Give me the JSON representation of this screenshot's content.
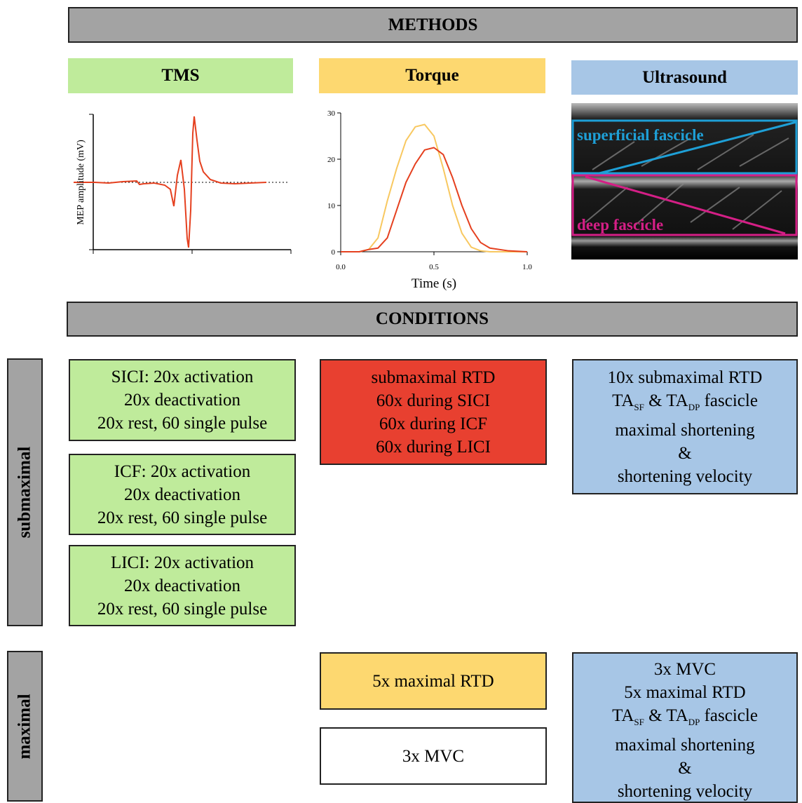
{
  "methods": {
    "title": "METHODS",
    "tms": {
      "title": "TMS",
      "ylabel": "MEP amplitude (mV)"
    },
    "torque": {
      "title": "Torque"
    },
    "ultrasound": {
      "title": "Ultrasound",
      "superficial_label": "superficial fascicle",
      "deep_label": "deep fascicle"
    }
  },
  "torque_chart": {
    "type": "line",
    "xlabel": "Time (s)",
    "x": [
      0,
      0.1,
      0.15,
      0.2,
      0.25,
      0.3,
      0.35,
      0.4,
      0.45,
      0.5,
      0.55,
      0.6,
      0.65,
      0.7,
      0.75,
      0.8,
      0.9,
      1.0
    ],
    "series": [
      {
        "color": "#f8c860",
        "values": [
          0,
          0,
          0.5,
          3,
          11,
          18,
          24,
          27,
          27.5,
          25,
          18,
          10,
          4,
          1,
          0.2,
          0,
          0,
          0
        ]
      },
      {
        "color": "#e5401f",
        "values": [
          0,
          0,
          0.5,
          0.8,
          3,
          9,
          15,
          19,
          22,
          22.5,
          21,
          16,
          10,
          5,
          2,
          0.8,
          0.2,
          0
        ]
      }
    ],
    "xlim": [
      0,
      1
    ],
    "ylim": [
      0,
      30
    ],
    "xticks": [
      {
        "value": 0,
        "label": "0.0"
      },
      0.5,
      {
        "value": 1,
        "label": "1.0"
      }
    ],
    "yticks": [
      0,
      10,
      20,
      30
    ]
  },
  "conditions": {
    "title": "CONDITIONS",
    "submaximal": {
      "label": "submaximal",
      "tms": [
        {
          "lines": [
            [
              {
                "text": "SICI: 20x activation"
              }
            ],
            [
              {
                "text": "20x deactivation"
              }
            ],
            [
              {
                "text": "20x rest, 60 single pulse"
              }
            ]
          ]
        },
        {
          "lines": [
            [
              {
                "text": "ICF: 20x activation"
              }
            ],
            [
              {
                "text": "20x deactivation"
              }
            ],
            [
              {
                "text": "20x rest, 60 single pulse"
              }
            ]
          ]
        },
        {
          "lines": [
            [
              {
                "text": "LICI: 20x activation"
              }
            ],
            [
              {
                "text": "20x deactivation"
              }
            ],
            [
              {
                "text": "20x rest, 60 single pulse"
              }
            ]
          ]
        }
      ],
      "torque": {
        "lines": [
          [
            {
              "text": "submaximal RTD"
            }
          ],
          [
            {
              "text": "60x during SICI"
            }
          ],
          [
            {
              "text": "60x during ICF"
            }
          ],
          [
            {
              "text": "60x during LICI"
            }
          ]
        ]
      },
      "ultrasound": {
        "lines": [
          [
            {
              "text": "10x submaximal RTD"
            }
          ],
          [
            {
              "text": "TA"
            },
            {
              "text": "SF",
              "sub": true
            },
            {
              "text": " & TA"
            },
            {
              "text": "DP",
              "sub": true
            },
            {
              "text": " fascicle"
            }
          ],
          [
            {
              "text": "maximal shortening"
            }
          ],
          [
            {
              "text": "&"
            }
          ],
          [
            {
              "text": "shortening velocity"
            }
          ]
        ]
      }
    },
    "maximal": {
      "label": "maximal",
      "torque": [
        {
          "lines": [
            [
              {
                "text": "5x maximal RTD"
              }
            ]
          ]
        },
        {
          "lines": [
            [
              {
                "text": "3x MVC"
              }
            ]
          ]
        }
      ],
      "ultrasound": {
        "lines": [
          [
            {
              "text": "3x MVC"
            }
          ],
          [
            {
              "text": "5x maximal RTD"
            }
          ],
          [
            {
              "text": "TA"
            },
            {
              "text": "SF",
              "sub": true
            },
            {
              "text": " & TA"
            },
            {
              "text": "DP",
              "sub": true
            },
            {
              "text": " fascicle"
            }
          ],
          [
            {
              "text": "maximal shortening"
            }
          ],
          [
            {
              "text": "&"
            }
          ],
          [
            {
              "text": "shortening velocity"
            }
          ]
        ]
      }
    }
  }
}
